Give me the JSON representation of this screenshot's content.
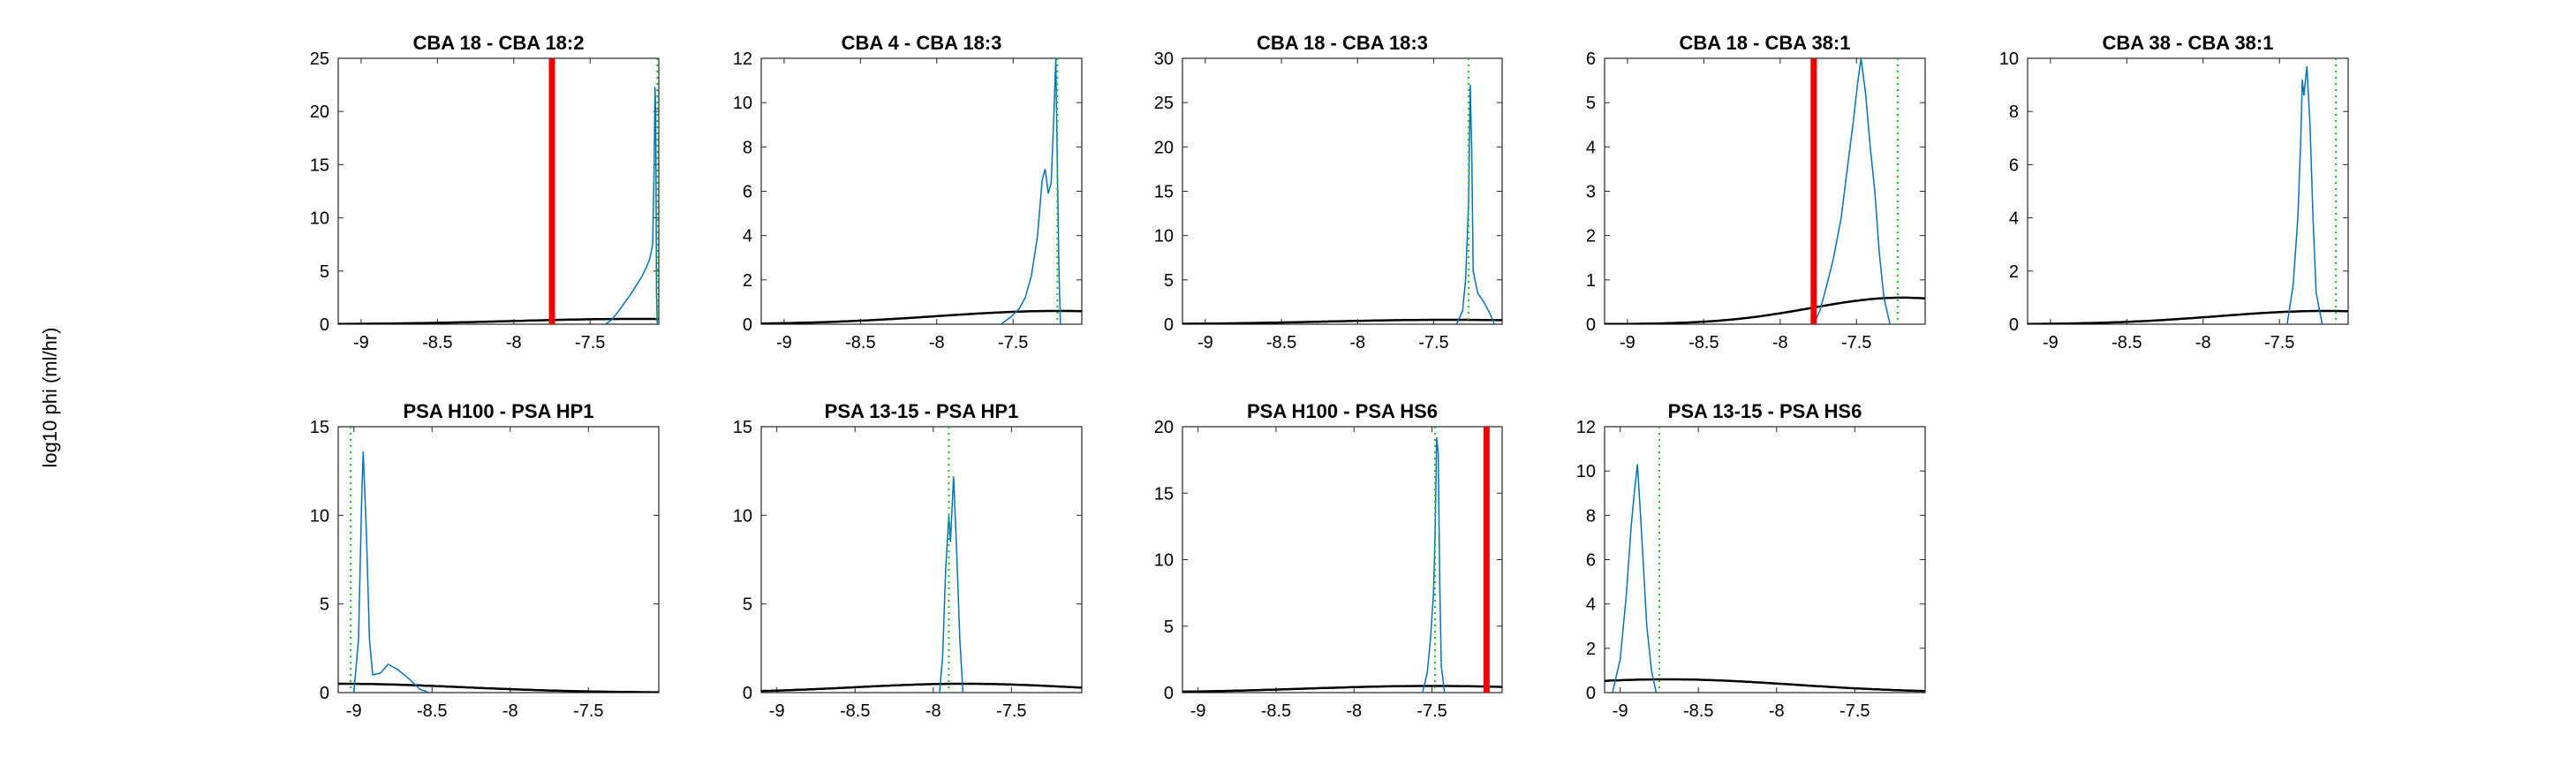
{
  "figure": {
    "ylabel": "log10 phi (ml/hr)"
  },
  "chart_data": [
    {
      "type": "line",
      "title": "CBA 18 - CBA 18:2",
      "xlim": [
        -9.15,
        -7.05
      ],
      "ylim": [
        0,
        25
      ],
      "xticks": [
        -9,
        -8.5,
        -8,
        -7.5
      ],
      "yticks": [
        0,
        5,
        10,
        15,
        20,
        25
      ],
      "prior_peak": 0.5,
      "prior_center": -7.2,
      "prior_sigma": 0.8,
      "hist": [
        [
          -7.4,
          0
        ],
        [
          -7.36,
          0.4
        ],
        [
          -7.32,
          1.1
        ],
        [
          -7.28,
          1.9
        ],
        [
          -7.24,
          2.7
        ],
        [
          -7.2,
          3.6
        ],
        [
          -7.16,
          4.5
        ],
        [
          -7.13,
          5.4
        ],
        [
          -7.11,
          6.1
        ],
        [
          -7.09,
          7.5
        ],
        [
          -7.08,
          15
        ],
        [
          -7.075,
          22.3
        ],
        [
          -7.07,
          20
        ],
        [
          -7.065,
          3
        ],
        [
          -7.06,
          0
        ]
      ],
      "green_line": -7.06,
      "red_line": -7.75
    },
    {
      "type": "line",
      "title": "CBA 4 - CBA 18:3",
      "xlim": [
        -9.15,
        -7.05
      ],
      "ylim": [
        0,
        12
      ],
      "xticks": [
        -9,
        -8.5,
        -8,
        -7.5
      ],
      "yticks": [
        0,
        2,
        4,
        6,
        8,
        10,
        12
      ],
      "prior_peak": 0.6,
      "prior_center": -7.2,
      "prior_sigma": 0.8,
      "hist": [
        [
          -7.58,
          0
        ],
        [
          -7.52,
          0.3
        ],
        [
          -7.46,
          0.7
        ],
        [
          -7.42,
          1.2
        ],
        [
          -7.38,
          2.2
        ],
        [
          -7.34,
          4
        ],
        [
          -7.31,
          6.5
        ],
        [
          -7.29,
          7
        ],
        [
          -7.27,
          5.9
        ],
        [
          -7.25,
          6.4
        ],
        [
          -7.23,
          10
        ],
        [
          -7.22,
          12
        ],
        [
          -7.21,
          7.2
        ],
        [
          -7.2,
          2.5
        ],
        [
          -7.19,
          0
        ]
      ],
      "green_line": -7.21,
      "red_line": null
    },
    {
      "type": "line",
      "title": "CBA 18 - CBA 18:3",
      "xlim": [
        -9.15,
        -7.05
      ],
      "ylim": [
        0,
        30
      ],
      "xticks": [
        -9,
        -8.5,
        -8,
        -7.5
      ],
      "yticks": [
        0,
        5,
        10,
        15,
        20,
        25,
        30
      ],
      "prior_peak": 0.5,
      "prior_center": -7.4,
      "prior_sigma": 0.8,
      "hist": [
        [
          -7.35,
          0
        ],
        [
          -7.31,
          1.5
        ],
        [
          -7.29,
          5
        ],
        [
          -7.27,
          14
        ],
        [
          -7.26,
          27
        ],
        [
          -7.25,
          20
        ],
        [
          -7.24,
          6
        ],
        [
          -7.21,
          3.5
        ],
        [
          -7.17,
          2.5
        ],
        [
          -7.13,
          1.2
        ],
        [
          -7.1,
          0
        ]
      ],
      "green_line": -7.27,
      "red_line": null
    },
    {
      "type": "line",
      "title": "CBA 18 - CBA 38:1",
      "xlim": [
        -9.15,
        -7.05
      ],
      "ylim": [
        0,
        6
      ],
      "xticks": [
        -9,
        -8.5,
        -8,
        -7.5
      ],
      "yticks": [
        0,
        1,
        2,
        3,
        4,
        5,
        6
      ],
      "prior_peak": 0.6,
      "prior_center": -7.2,
      "prior_sigma": 0.6,
      "hist": [
        [
          -7.78,
          0
        ],
        [
          -7.74,
          0.3
        ],
        [
          -7.7,
          0.8
        ],
        [
          -7.65,
          1.5
        ],
        [
          -7.6,
          2.4
        ],
        [
          -7.56,
          3.5
        ],
        [
          -7.52,
          4.6
        ],
        [
          -7.49,
          5.5
        ],
        [
          -7.47,
          6
        ],
        [
          -7.44,
          5.2
        ],
        [
          -7.41,
          4
        ],
        [
          -7.38,
          3
        ],
        [
          -7.35,
          1.6
        ],
        [
          -7.32,
          0.6
        ],
        [
          -7.28,
          0
        ]
      ],
      "green_line": -7.23,
      "red_line": -7.78
    },
    {
      "type": "line",
      "title": "CBA 38 - CBA 38:1",
      "xlim": [
        -9.15,
        -7.05
      ],
      "ylim": [
        0,
        10
      ],
      "xticks": [
        -9,
        -8.5,
        -8,
        -7.5
      ],
      "yticks": [
        0,
        2,
        4,
        6,
        8,
        10
      ],
      "prior_peak": 0.5,
      "prior_center": -7.2,
      "prior_sigma": 0.7,
      "hist": [
        [
          -7.45,
          0
        ],
        [
          -7.41,
          1.5
        ],
        [
          -7.38,
          4
        ],
        [
          -7.36,
          7
        ],
        [
          -7.35,
          9.2
        ],
        [
          -7.34,
          8.6
        ],
        [
          -7.32,
          9.7
        ],
        [
          -7.3,
          7.5
        ],
        [
          -7.28,
          4
        ],
        [
          -7.26,
          1.2
        ],
        [
          -7.22,
          0
        ]
      ],
      "green_line": -7.13,
      "red_line": null
    },
    {
      "type": "line",
      "title": "PSA H100 - PSA HP1",
      "xlim": [
        -9.1,
        -7.05
      ],
      "ylim": [
        0,
        15
      ],
      "xticks": [
        -9,
        -8.5,
        -8,
        -7.5
      ],
      "yticks": [
        0,
        5,
        10,
        15
      ],
      "prior_peak": 0.5,
      "prior_center": -9.1,
      "prior_sigma": 0.8,
      "hist": [
        [
          -9.0,
          0
        ],
        [
          -8.97,
          3
        ],
        [
          -8.95,
          11
        ],
        [
          -8.94,
          13.6
        ],
        [
          -8.92,
          9
        ],
        [
          -8.9,
          3
        ],
        [
          -8.88,
          1
        ],
        [
          -8.83,
          1.1
        ],
        [
          -8.78,
          1.6
        ],
        [
          -8.72,
          1.3
        ],
        [
          -8.65,
          0.8
        ],
        [
          -8.58,
          0.2
        ],
        [
          -8.52,
          0
        ]
      ],
      "green_line": -9.02,
      "red_line": null
    },
    {
      "type": "line",
      "title": "PSA 13-15 - PSA HP1",
      "xlim": [
        -9.1,
        -7.05
      ],
      "ylim": [
        0,
        15
      ],
      "xticks": [
        -9,
        -8.5,
        -8,
        -7.5
      ],
      "yticks": [
        0,
        5,
        10,
        15
      ],
      "prior_peak": 0.5,
      "prior_center": -7.8,
      "prior_sigma": 0.7,
      "hist": [
        [
          -7.96,
          0
        ],
        [
          -7.94,
          2
        ],
        [
          -7.92,
          7
        ],
        [
          -7.9,
          10
        ],
        [
          -7.89,
          8.5
        ],
        [
          -7.87,
          12.2
        ],
        [
          -7.85,
          8
        ],
        [
          -7.83,
          3
        ],
        [
          -7.81,
          0
        ]
      ],
      "green_line": -7.9,
      "red_line": null
    },
    {
      "type": "line",
      "title": "PSA H100 - PSA HS6",
      "xlim": [
        -9.1,
        -7.05
      ],
      "ylim": [
        0,
        20
      ],
      "xticks": [
        -9,
        -8.5,
        -8,
        -7.5
      ],
      "yticks": [
        0,
        5,
        10,
        15,
        20
      ],
      "prior_peak": 0.5,
      "prior_center": -7.5,
      "prior_sigma": 0.8,
      "hist": [
        [
          -7.56,
          0
        ],
        [
          -7.53,
          1.5
        ],
        [
          -7.51,
          4
        ],
        [
          -7.49,
          7.5
        ],
        [
          -7.48,
          12
        ],
        [
          -7.47,
          19.2
        ],
        [
          -7.46,
          18
        ],
        [
          -7.45,
          8
        ],
        [
          -7.44,
          2
        ],
        [
          -7.42,
          0
        ]
      ],
      "green_line": -7.48,
      "red_line": -7.15
    },
    {
      "type": "line",
      "title": "PSA 13-15 - PSA HS6",
      "xlim": [
        -9.1,
        -7.05
      ],
      "ylim": [
        0,
        12
      ],
      "xticks": [
        -9,
        -8.5,
        -8,
        -7.5
      ],
      "yticks": [
        0,
        2,
        4,
        6,
        8,
        10,
        12
      ],
      "prior_peak": 0.6,
      "prior_center": -8.7,
      "prior_sigma": 0.8,
      "hist": [
        [
          -9.05,
          0
        ],
        [
          -9.0,
          1.5
        ],
        [
          -8.96,
          4.5
        ],
        [
          -8.93,
          7.5
        ],
        [
          -8.91,
          9
        ],
        [
          -8.89,
          10.3
        ],
        [
          -8.87,
          8
        ],
        [
          -8.85,
          5.5
        ],
        [
          -8.83,
          3
        ],
        [
          -8.8,
          1
        ],
        [
          -8.77,
          0
        ]
      ],
      "green_line": -8.75,
      "red_line": null
    }
  ]
}
